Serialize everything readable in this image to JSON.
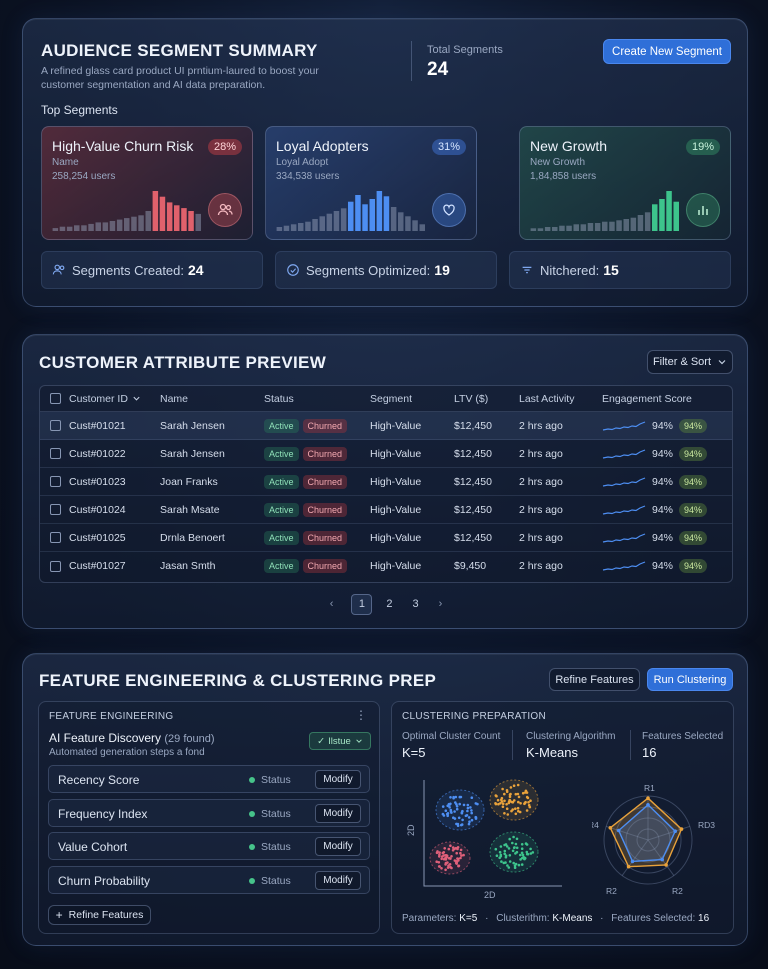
{
  "summary": {
    "title": "AUDIENCE SEGMENT SUMMARY",
    "description_line1": "A refined glass card product UI prntium-laured to boost your",
    "description_line2": "customer segmentation and AI data preparation.",
    "total_label": "Total Segments",
    "total_value": "24",
    "create_button": "Create New Segment",
    "top_segments_label": "Top Segments",
    "segments": [
      {
        "name": "High-Value Churn Risk",
        "sub": "Name",
        "users": "258,254 users",
        "pct": "28%",
        "color": "#e0616c",
        "bars": [
          2,
          3,
          3,
          4,
          4,
          5,
          6,
          6,
          7,
          8,
          9,
          10,
          11,
          14,
          28,
          24,
          20,
          18,
          16,
          14,
          12
        ]
      },
      {
        "name": "Loyal Adopters",
        "sub": "Loyal Adopt",
        "users": "334,538 users",
        "pct": "31%",
        "color": "#4d8ef2",
        "bars": [
          3,
          4,
          5,
          6,
          7,
          9,
          11,
          13,
          15,
          17,
          22,
          27,
          20,
          24,
          30,
          26,
          18,
          14,
          11,
          8,
          5
        ]
      },
      {
        "name": "New Growth",
        "sub": "New Growth",
        "users": "1,84,858 users",
        "pct": "19%",
        "color": "#3dc48c",
        "bars": [
          2,
          2,
          3,
          3,
          4,
          4,
          5,
          5,
          6,
          6,
          7,
          7,
          8,
          9,
          10,
          12,
          14,
          20,
          24,
          30,
          22
        ]
      }
    ],
    "stats": [
      {
        "label": "Segments Created:",
        "value": "24",
        "icon": "users-icon"
      },
      {
        "label": "Segments Optimized:",
        "value": "19",
        "icon": "check-circle-icon"
      },
      {
        "label": "Nitchered:",
        "value": "15",
        "icon": "filter-icon"
      }
    ]
  },
  "attributes": {
    "title": "CUSTOMER ATTRIBUTE PREVIEW",
    "filter_button": "Filter & Sort",
    "columns": [
      "Customer ID",
      "Name",
      "Status",
      "Segment",
      "LTV ($)",
      "Last Activity",
      "Engagement Score"
    ],
    "rows": [
      {
        "id": "Cust#01021",
        "name": "Sarah Jensen",
        "status1": "Active",
        "status2": "Churned",
        "segment": "High-Value",
        "ltv": "$12,450",
        "activity": "2 hrs ago",
        "score": "94%",
        "score_badge": "94%"
      },
      {
        "id": "Cust#01022",
        "name": "Sarah Jensen",
        "status1": "Active",
        "status2": "Churned",
        "segment": "High-Value",
        "ltv": "$12,450",
        "activity": "2 hrs ago",
        "score": "94%",
        "score_badge": "94%"
      },
      {
        "id": "Cust#01023",
        "name": "Joan Franks",
        "status1": "Active",
        "status2": "Churned",
        "segment": "High-Value",
        "ltv": "$12,450",
        "activity": "2 hrs ago",
        "score": "94%",
        "score_badge": "94%"
      },
      {
        "id": "Cust#01024",
        "name": "Sarah Msate",
        "status1": "Active",
        "status2": "Churned",
        "segment": "High-Value",
        "ltv": "$12,450",
        "activity": "2 hrs ago",
        "score": "94%",
        "score_badge": "94%"
      },
      {
        "id": "Cust#01025",
        "name": "Drnla Benoert",
        "status1": "Active",
        "status2": "Churned",
        "segment": "High-Value",
        "ltv": "$12,450",
        "activity": "2 hrs ago",
        "score": "94%",
        "score_badge": "94%"
      },
      {
        "id": "Cust#01027",
        "name": "Jasan Smth",
        "status1": "Active",
        "status2": "Churned",
        "segment": "High-Value",
        "ltv": "$9,450",
        "activity": "2 hrs ago",
        "score": "94%",
        "score_badge": "94%"
      }
    ],
    "pager": {
      "prev": "‹",
      "pages": [
        "1",
        "2",
        "3"
      ],
      "next": "›",
      "active": "1"
    }
  },
  "features": {
    "title": "FEATURE ENGINEERING & CLUSTERING PREP",
    "refine_button": "Refine Features",
    "run_button": "Run Clustering",
    "panel_title": "FEATURE ENGINEERING",
    "discovery_title": "AI Feature Discovery",
    "discovery_count": "(29 found)",
    "discovery_sub": "Automated generation steps a fond",
    "issue_badge": "Ilstue",
    "items": [
      {
        "label": "Recency Score",
        "status": "Status",
        "action": "Modify"
      },
      {
        "label": "Frequency Index",
        "status": "Status",
        "action": "Modify"
      },
      {
        "label": "Value Cohort",
        "status": "Status",
        "action": "Modify"
      },
      {
        "label": "Churn Probability",
        "status": "Status",
        "action": "Modify"
      }
    ],
    "add_button": "Refine Features",
    "cluster_title": "CLUSTERING PREPARATION",
    "kpis": [
      {
        "label": "Optimal Cluster Count",
        "value": "K=5"
      },
      {
        "label": "Clustering Algorithm",
        "value": "K-Means"
      },
      {
        "label": "Features Selected",
        "value": "16"
      }
    ],
    "scatter_y": "2D",
    "scatter_x": "2D",
    "radar_labels": [
      "R1",
      "RD3",
      "R2",
      "R2",
      "R4"
    ],
    "params_label1": "Parameters:",
    "params_val1": "K=5",
    "params_label2": "Clusterithm:",
    "params_val2": "K-Means",
    "params_label3": "Features Selected:",
    "params_val3": "16",
    "colors": {
      "blue": "#4d8ef2",
      "orange": "#e9a23b",
      "pink": "#e0607a",
      "green": "#3dc48c"
    }
  }
}
